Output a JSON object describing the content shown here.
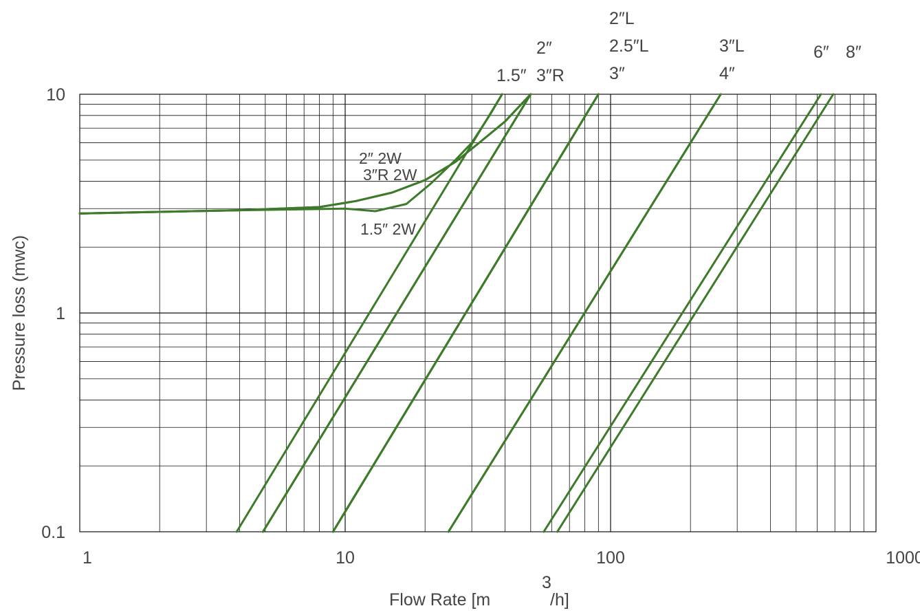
{
  "chart_data": {
    "type": "line",
    "title": "",
    "xlabel": "Flow Rate  [m",
    "xlabel_sup": "3",
    "xlabel_tail": "/h]",
    "ylabel": "Pressure loss (mwc)",
    "x_scale": "log",
    "y_scale": "log",
    "xlim": [
      1,
      1000
    ],
    "ylim": [
      0.1,
      10
    ],
    "x_ticks": [
      1,
      10,
      100,
      1000
    ],
    "x_tick_labels": [
      "1",
      "10",
      "100",
      "1000"
    ],
    "y_ticks": [
      0.1,
      1,
      10
    ],
    "y_tick_labels": [
      "0.1",
      "1",
      "10"
    ],
    "grid": true,
    "line_color": "#3d7a2a",
    "series": [
      {
        "name": "1.5″",
        "points": [
          [
            3.9,
            0.1
          ],
          [
            39,
            10
          ]
        ]
      },
      {
        "name": "2″",
        "points": [
          [
            4.9,
            0.1
          ],
          [
            50,
            10
          ]
        ]
      },
      {
        "name": "3″R",
        "points": [
          [
            4.9,
            0.1
          ],
          [
            50,
            10
          ]
        ]
      },
      {
        "name": "2″L",
        "points": [
          [
            9,
            0.1
          ],
          [
            90,
            10
          ]
        ]
      },
      {
        "name": "2.5″L",
        "points": [
          [
            9,
            0.1
          ],
          [
            90,
            10
          ]
        ]
      },
      {
        "name": "3″",
        "points": [
          [
            9,
            0.1
          ],
          [
            90,
            10
          ]
        ]
      },
      {
        "name": "3″L",
        "points": [
          [
            24.5,
            0.1
          ],
          [
            260,
            10
          ]
        ]
      },
      {
        "name": "4″",
        "points": [
          [
            24.5,
            0.1
          ],
          [
            260,
            10
          ]
        ]
      },
      {
        "name": "6″",
        "points": [
          [
            56,
            0.1
          ],
          [
            620,
            10
          ]
        ]
      },
      {
        "name": "8″",
        "points": [
          [
            63,
            0.1
          ],
          [
            690,
            10
          ]
        ]
      },
      {
        "name": "2″ 2W",
        "points": [
          [
            1,
            2.85
          ],
          [
            4,
            2.95
          ],
          [
            8,
            3.05
          ],
          [
            11,
            3.25
          ],
          [
            15,
            3.55
          ],
          [
            20,
            4.05
          ],
          [
            26,
            4.9
          ],
          [
            32,
            6.0
          ],
          [
            40,
            7.5
          ],
          [
            50,
            10
          ]
        ]
      },
      {
        "name": "3″R 2W",
        "points": [
          [
            1,
            2.85
          ],
          [
            4,
            2.95
          ],
          [
            8,
            3.05
          ],
          [
            11,
            3.25
          ],
          [
            15,
            3.55
          ],
          [
            20,
            4.05
          ],
          [
            26,
            4.9
          ],
          [
            32,
            6.0
          ],
          [
            40,
            7.5
          ],
          [
            50,
            10
          ]
        ]
      },
      {
        "name": "1.5″ 2W",
        "points": [
          [
            1,
            2.85
          ],
          [
            4,
            2.95
          ],
          [
            10,
            3.0
          ],
          [
            13,
            2.92
          ],
          [
            17,
            3.15
          ],
          [
            21,
            3.9
          ],
          [
            26,
            5.0
          ],
          [
            30,
            6.0
          ],
          [
            35,
            8.0
          ],
          [
            39,
            10
          ]
        ]
      }
    ],
    "top_labels": [
      [
        "1.5″"
      ],
      [
        "2″",
        "3″R"
      ],
      [
        "2″L",
        "2.5″L",
        "3″"
      ],
      [
        "3″L",
        "4″"
      ],
      [
        "6″"
      ],
      [
        "8″"
      ]
    ],
    "curve_labels": [
      "2″ 2W",
      "3″R 2W",
      "1.5″ 2W"
    ]
  }
}
